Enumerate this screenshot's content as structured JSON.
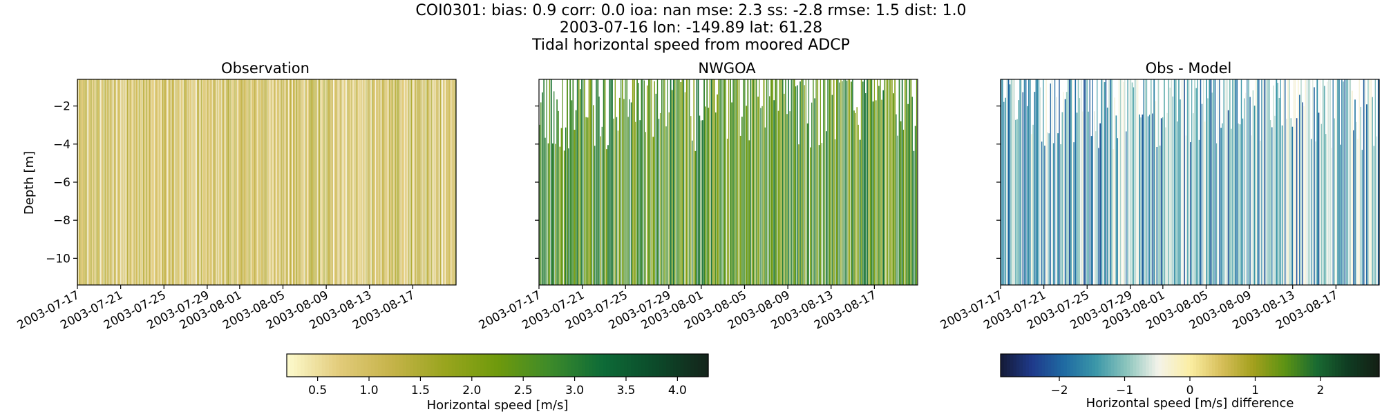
{
  "figure": {
    "title_lines": [
      "COI0301: bias: 0.9  corr: 0.0  ioa: nan  mse: 2.3  ss: -2.8  rmse: 1.5  dist: 1.0",
      "2003-07-16 lon: -149.89 lat: 61.28",
      "Tidal horizontal speed from moored ADCP"
    ]
  },
  "chart_data": [
    {
      "type": "heatmap",
      "title": "Observation",
      "xlabel": "",
      "ylabel": "Depth [m]",
      "x_ticks": [
        "2003-07-17",
        "2003-07-21",
        "2003-07-25",
        "2003-07-29",
        "2003-08-01",
        "2003-08-05",
        "2003-08-09",
        "2003-08-13",
        "2003-08-17"
      ],
      "x_range": [
        "2003-07-17",
        "2003-08-21"
      ],
      "y_ticks": [
        -2,
        -4,
        -6,
        -8,
        -10
      ],
      "ylim": [
        -11.4,
        -0.6
      ],
      "value_range": [
        0.2,
        4.3
      ],
      "typical_values": [
        0.6,
        1.5
      ],
      "colormap": [
        "#fdfbce",
        "#e2cb7a",
        "#c5b349",
        "#99a51e",
        "#6f9a0c",
        "#3d8a2a",
        "#0d6b37",
        "#0c4a2a",
        "#14241a"
      ]
    },
    {
      "type": "heatmap",
      "title": "NWGOA",
      "xlabel": "",
      "ylabel": "",
      "x_ticks": [
        "2003-07-17",
        "2003-07-21",
        "2003-07-25",
        "2003-07-29",
        "2003-08-01",
        "2003-08-05",
        "2003-08-09",
        "2003-08-13",
        "2003-08-17"
      ],
      "x_range": [
        "2003-07-17",
        "2003-08-21"
      ],
      "y_ticks": [
        -2,
        -4,
        -6,
        -8,
        -10
      ],
      "ylim": [
        -11.4,
        -0.6
      ],
      "value_range": [
        0.2,
        4.3
      ],
      "typical_values": [
        1.8,
        3.3
      ],
      "colormap": [
        "#fdfbce",
        "#e2cb7a",
        "#c5b349",
        "#99a51e",
        "#6f9a0c",
        "#3d8a2a",
        "#0d6b37",
        "#0c4a2a",
        "#14241a"
      ]
    },
    {
      "type": "heatmap",
      "title": "Obs - Model",
      "xlabel": "",
      "ylabel": "",
      "x_ticks": [
        "2003-07-17",
        "2003-07-21",
        "2003-07-25",
        "2003-07-29",
        "2003-08-01",
        "2003-08-05",
        "2003-08-09",
        "2003-08-13",
        "2003-08-17"
      ],
      "x_range": [
        "2003-07-17",
        "2003-08-21"
      ],
      "y_ticks": [
        -2,
        -4,
        -6,
        -8,
        -10
      ],
      "ylim": [
        -11.4,
        -0.6
      ],
      "value_range": [
        -2.9,
        2.9
      ],
      "typical_values": [
        -2.2,
        -0.3
      ],
      "colormap": [
        "#141a36",
        "#1f3a8b",
        "#1f6aa2",
        "#3a96a8",
        "#8cc5bd",
        "#f4f3ea",
        "#fbeea3",
        "#d7bf5a",
        "#a3a01d",
        "#5d9313",
        "#1a6b32",
        "#0f3c22",
        "#141f14"
      ]
    }
  ],
  "colorbars": [
    {
      "label": "Horizontal speed [m/s]",
      "range": [
        0.2,
        4.3
      ],
      "ticks": [
        0.5,
        1.0,
        1.5,
        2.0,
        2.5,
        3.0,
        3.5,
        4.0
      ],
      "tick_labels": [
        "0.5",
        "1.0",
        "1.5",
        "2.0",
        "2.5",
        "3.0",
        "3.5",
        "4.0"
      ]
    },
    {
      "label": "Horizontal speed [m/s] difference",
      "range": [
        -2.9,
        2.9
      ],
      "ticks": [
        -2,
        -1,
        0,
        1,
        2
      ],
      "tick_labels": [
        "−2",
        "−1",
        "0",
        "1",
        "2"
      ]
    }
  ]
}
